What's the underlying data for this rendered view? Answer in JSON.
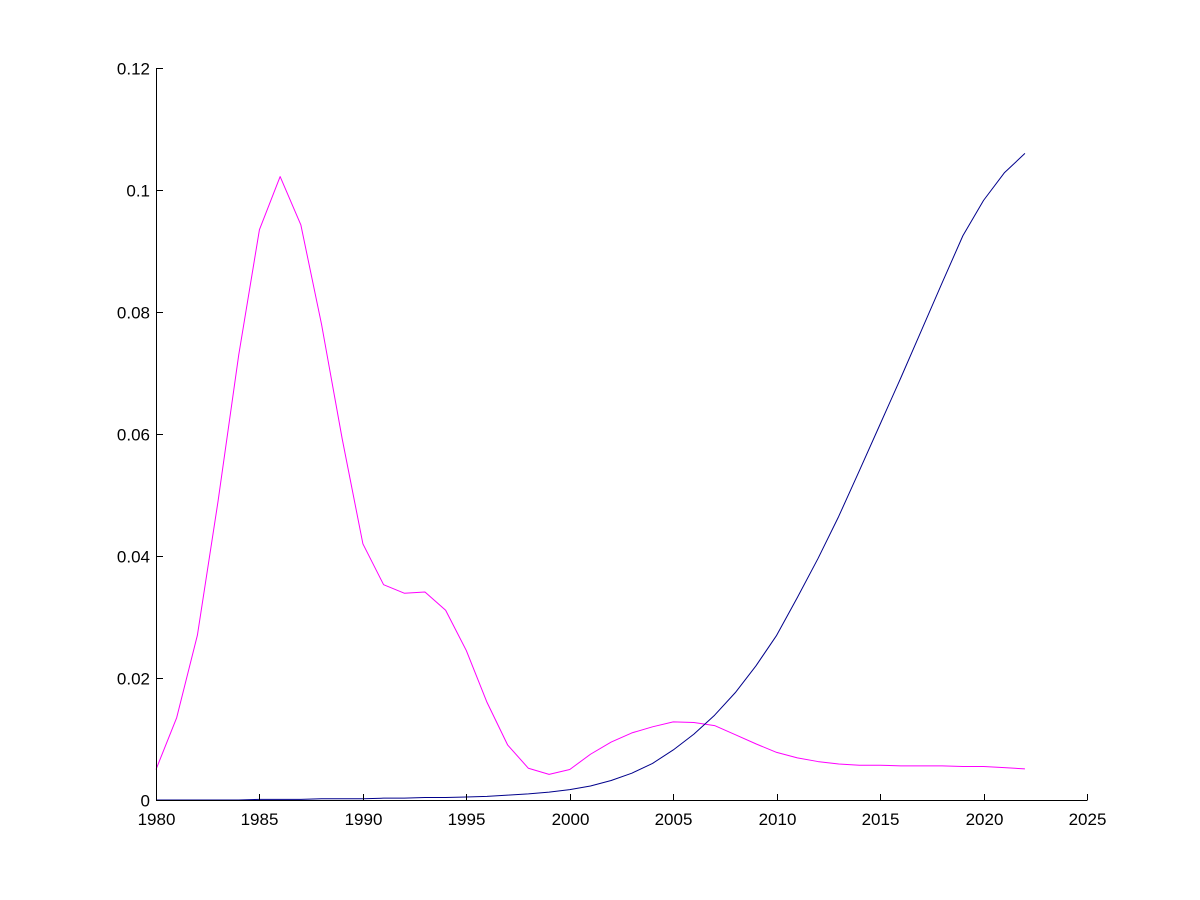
{
  "chart_data": {
    "type": "line",
    "title": "",
    "xlabel": "",
    "ylabel": "",
    "xlim": [
      1980,
      2025
    ],
    "ylim": [
      0,
      0.12
    ],
    "grid": false,
    "x_ticks": [
      1980,
      1985,
      1990,
      1995,
      2000,
      2005,
      2010,
      2015,
      2020,
      2025
    ],
    "x_tick_labels": [
      "1980",
      "1985",
      "1990",
      "1995",
      "2000",
      "2005",
      "2010",
      "2015",
      "2020",
      "2025"
    ],
    "y_ticks": [
      0,
      0.02,
      0.04,
      0.06,
      0.08,
      0.1,
      0.12
    ],
    "y_tick_labels": [
      "0",
      "0.02",
      "0.04",
      "0.06",
      "0.08",
      "0.1",
      "0.12"
    ],
    "x": [
      1980,
      1981,
      1982,
      1983,
      1984,
      1985,
      1986,
      1987,
      1988,
      1989,
      1990,
      1991,
      1992,
      1993,
      1994,
      1995,
      1996,
      1997,
      1998,
      1999,
      2000,
      2001,
      2002,
      2003,
      2004,
      2005,
      2006,
      2007,
      2008,
      2009,
      2010,
      2011,
      2012,
      2013,
      2014,
      2015,
      2016,
      2017,
      2018,
      2019,
      2020,
      2021,
      2022
    ],
    "series": [
      {
        "color": "#ff00ff",
        "values": [
          0.005,
          0.0135,
          0.027,
          0.049,
          0.073,
          0.0935,
          0.1022,
          0.0943,
          0.078,
          0.0592,
          0.042,
          0.0353,
          0.0339,
          0.0341,
          0.0311,
          0.0245,
          0.016,
          0.009,
          0.0052,
          0.0042,
          0.005,
          0.0075,
          0.0095,
          0.011,
          0.012,
          0.0128,
          0.0127,
          0.0122,
          0.0107,
          0.0092,
          0.0078,
          0.0069,
          0.0063,
          0.0059,
          0.0057,
          0.0057,
          0.0056,
          0.0056,
          0.0056,
          0.0055,
          0.0055,
          0.0053,
          0.0051
        ]
      },
      {
        "color": "#00008b",
        "values": [
          0.0,
          0.0,
          0.0,
          0.0,
          0.0,
          0.0001,
          0.0001,
          0.0001,
          0.0002,
          0.0002,
          0.0002,
          0.0003,
          0.0003,
          0.0004,
          0.0004,
          0.0005,
          0.0006,
          0.0008,
          0.001,
          0.0013,
          0.0017,
          0.0023,
          0.0032,
          0.0044,
          0.006,
          0.0082,
          0.0108,
          0.0139,
          0.0176,
          0.022,
          0.027,
          0.0332,
          0.0396,
          0.0465,
          0.054,
          0.0616,
          0.0692,
          0.077,
          0.0848,
          0.0925,
          0.0983,
          0.1028,
          0.106
        ]
      }
    ]
  }
}
